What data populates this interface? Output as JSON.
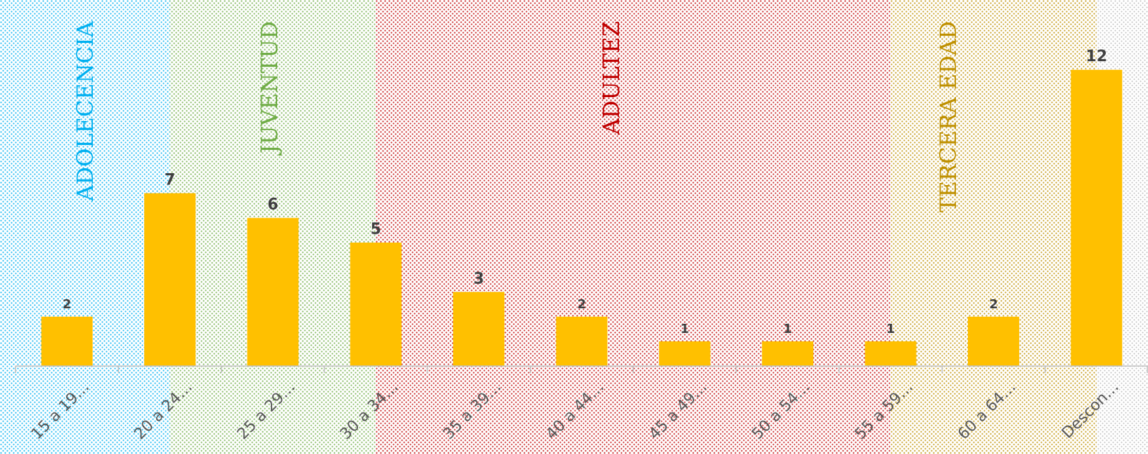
{
  "chart_data": {
    "type": "bar",
    "categories": [
      "15 a 19…",
      "20 a 24…",
      "25 a 29…",
      "30 a 34…",
      "35 a 39…",
      "40 a 44…",
      "45 a 49…",
      "50 a 54…",
      "55 a 59…",
      "60 a 64…",
      "Descon…"
    ],
    "values": [
      2,
      7,
      6,
      5,
      3,
      2,
      1,
      1,
      1,
      2,
      12
    ],
    "bar_color": "#FFC000",
    "ylim": [
      0,
      14
    ],
    "grid": false,
    "legend": "none",
    "bands": [
      {
        "label": "ADOLECENCIA",
        "color": "#00B0F0",
        "from_category": 0,
        "to_category": 1
      },
      {
        "label": "JUVENTUD",
        "color": "#70AD47",
        "from_category": 1,
        "to_category": 3
      },
      {
        "label": "ADULTEZ",
        "color": "#C00000",
        "from_category": 3,
        "to_category": 8
      },
      {
        "label": "TERCERA EDAD",
        "color": "#BF9000",
        "from_category": 8,
        "to_category": 10
      }
    ]
  }
}
